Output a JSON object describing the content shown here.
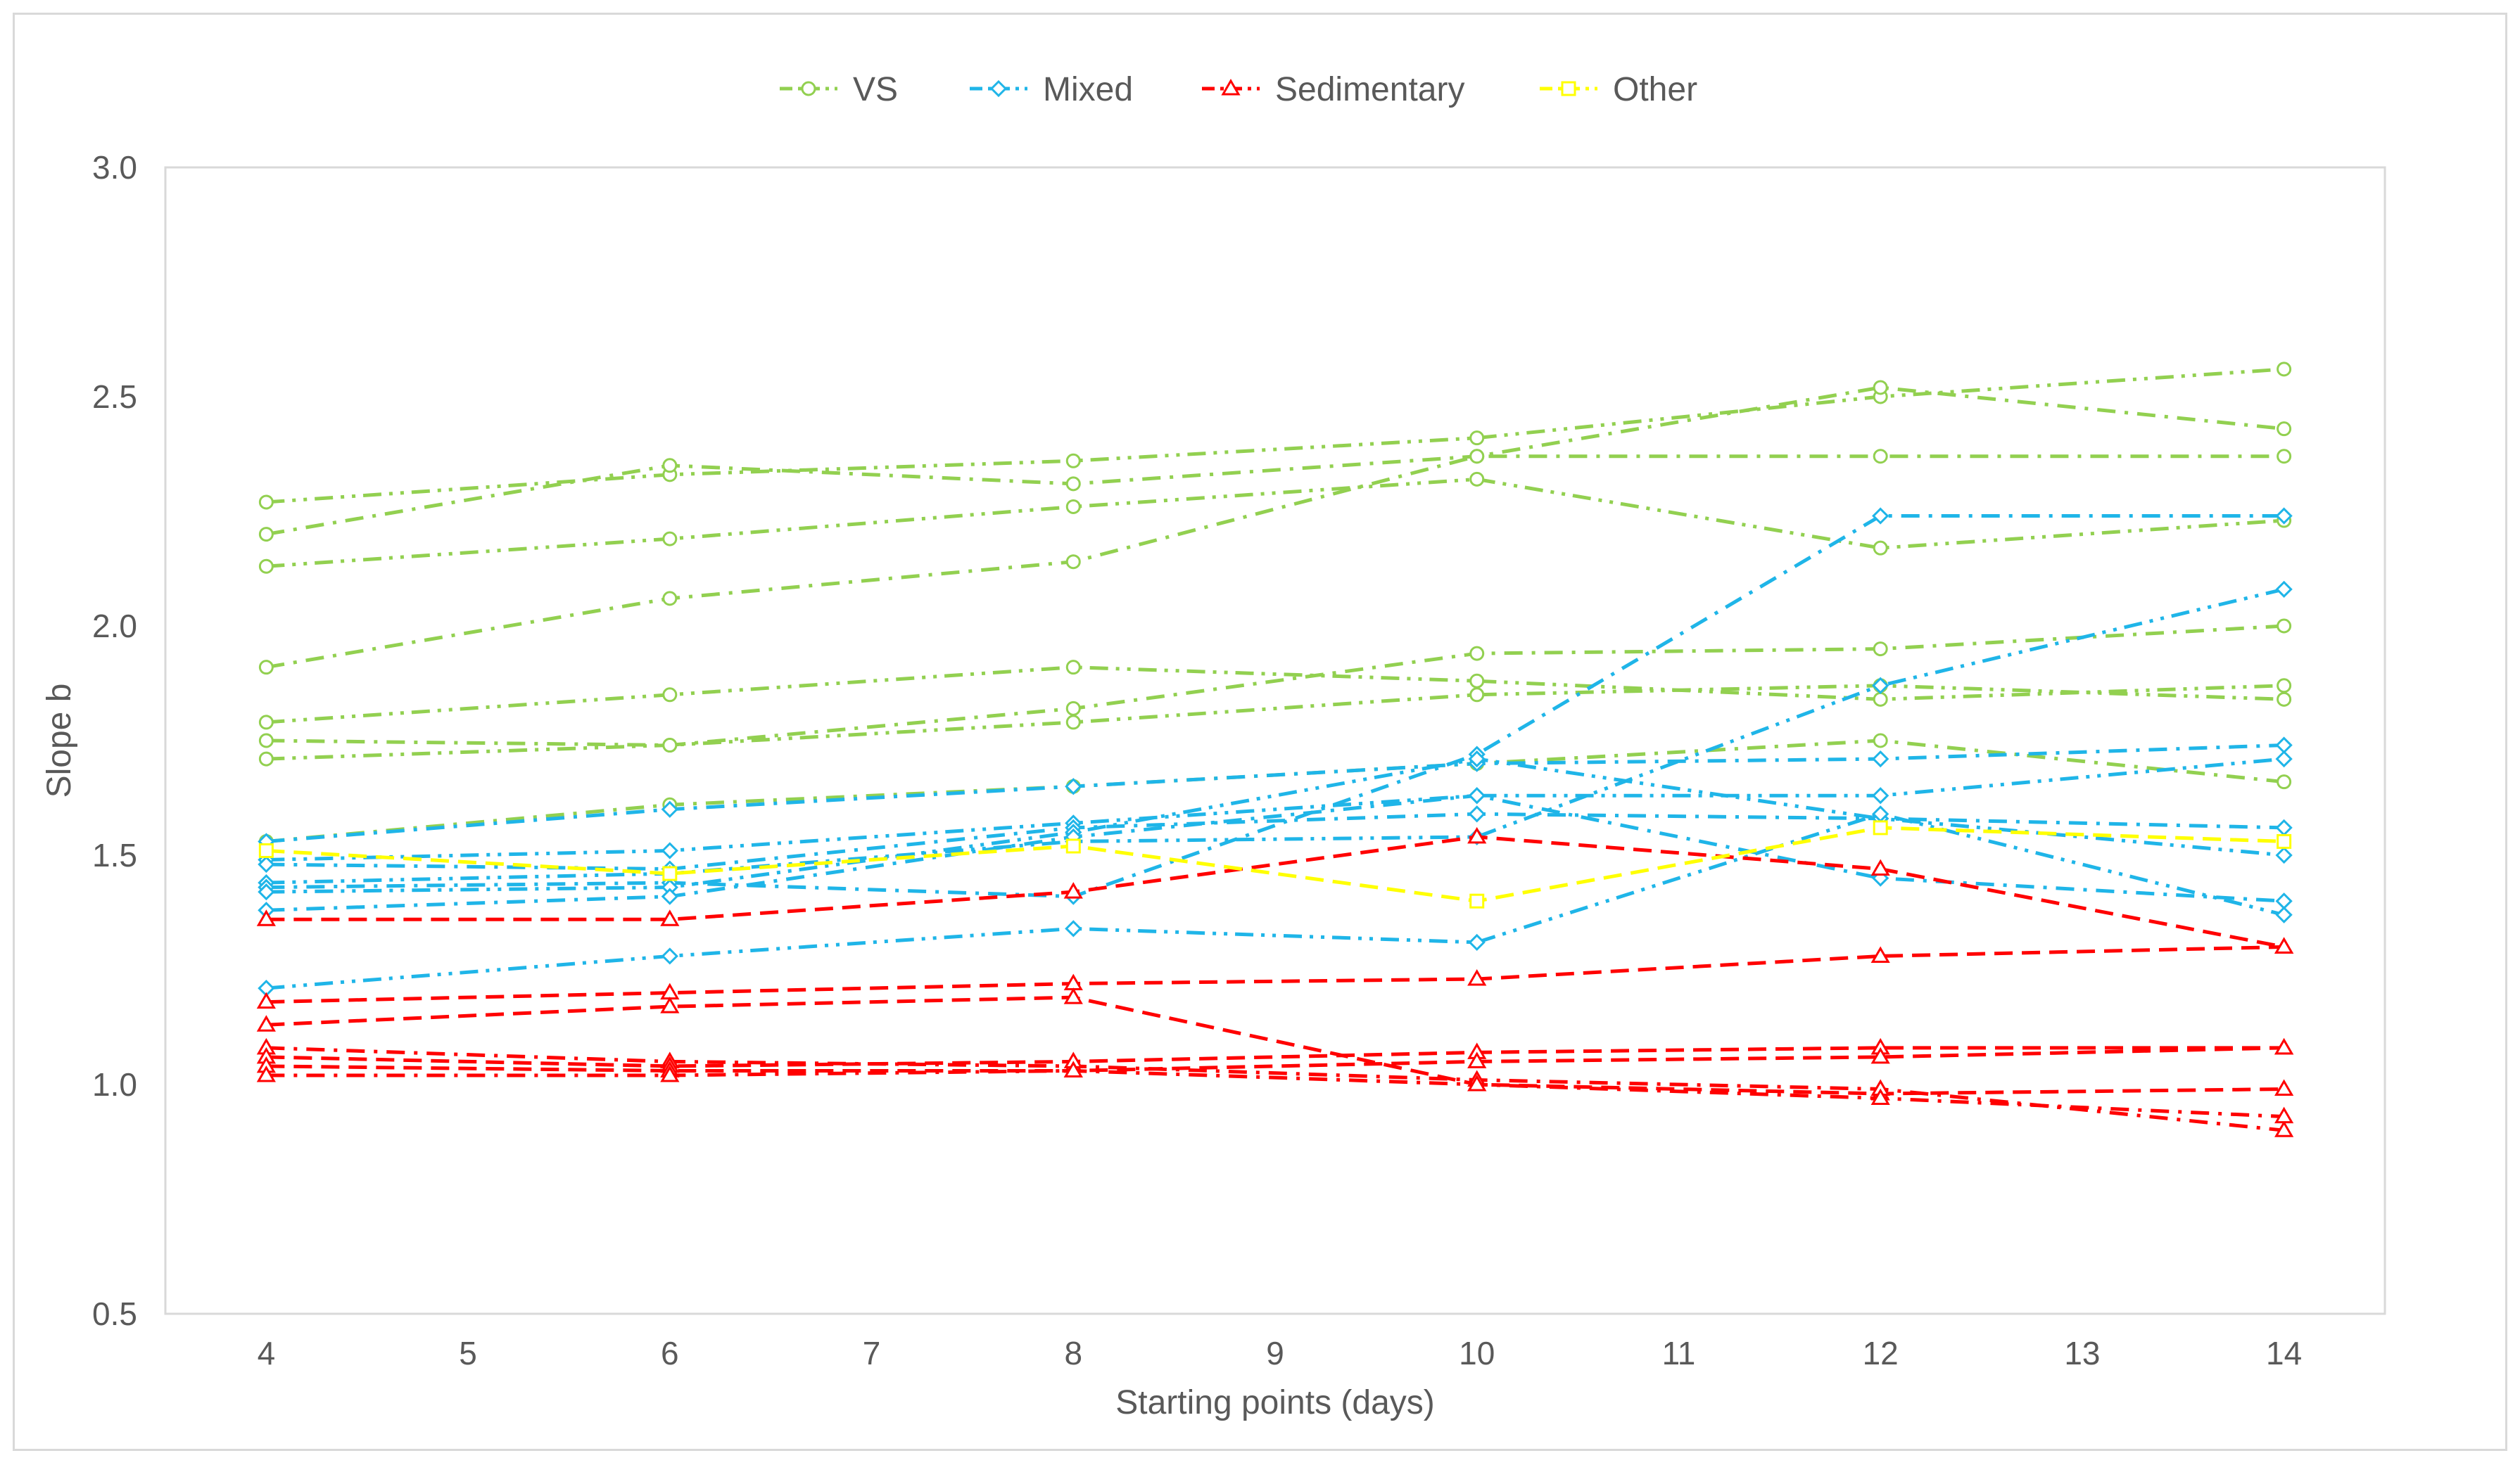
{
  "chart_data": {
    "type": "line",
    "title": "",
    "xlabel": "Starting points (days)",
    "ylabel": "Slope b",
    "xlim": [
      3.5,
      14.5
    ],
    "ylim": [
      0.5,
      3.0
    ],
    "x_ticks": [
      4,
      5,
      6,
      7,
      8,
      9,
      10,
      11,
      12,
      13,
      14
    ],
    "y_ticks": [
      0.5,
      1.0,
      1.5,
      2.0,
      2.5,
      3.0
    ],
    "y_tick_labels": [
      "0.5",
      "1.0",
      "1.5",
      "2.0",
      "2.5",
      "3.0"
    ],
    "x": [
      4,
      6,
      8,
      10,
      12,
      14
    ],
    "legend_position": "top-center",
    "groups": [
      {
        "name": "VS",
        "color": "#92d050",
        "marker": "circle"
      },
      {
        "name": "Mixed",
        "color": "#1fb5e8",
        "marker": "diamond"
      },
      {
        "name": "Sedimentary",
        "color": "#ff0000",
        "marker": "triangle"
      },
      {
        "name": "Other",
        "color": "#ffff00",
        "marker": "square"
      }
    ],
    "series": [
      {
        "group": "VS",
        "dash": "dashdotdot",
        "values": [
          2.27,
          2.33,
          2.36,
          2.41,
          2.5,
          2.56
        ]
      },
      {
        "group": "VS",
        "dash": "dashdot",
        "values": [
          2.2,
          2.35,
          2.31,
          2.37,
          2.52,
          2.43
        ]
      },
      {
        "group": "VS",
        "dash": "dashdotdot",
        "values": [
          2.13,
          2.19,
          2.26,
          2.32,
          2.17,
          2.23
        ]
      },
      {
        "group": "VS",
        "dash": "dashdot",
        "values": [
          1.91,
          2.06,
          2.14,
          2.37,
          2.37,
          2.37
        ]
      },
      {
        "group": "VS",
        "dash": "dashdotdot",
        "values": [
          1.79,
          1.85,
          1.91,
          1.88,
          1.84,
          1.87
        ]
      },
      {
        "group": "VS",
        "dash": "dashdot",
        "values": [
          1.75,
          1.74,
          1.82,
          1.94,
          1.95,
          2.0
        ]
      },
      {
        "group": "VS",
        "dash": "dashdotdot",
        "values": [
          1.71,
          1.74,
          1.79,
          1.85,
          1.87,
          1.84
        ]
      },
      {
        "group": "VS",
        "dash": "dashdot",
        "values": [
          1.53,
          1.61,
          1.65,
          1.7,
          1.75,
          1.66
        ]
      },
      {
        "group": "Mixed",
        "dash": "dashdot",
        "values": [
          1.53,
          1.6,
          1.65,
          1.7,
          1.71,
          1.74
        ]
      },
      {
        "group": "Mixed",
        "dash": "dashdotdot",
        "values": [
          1.49,
          1.51,
          1.57,
          1.63,
          1.63,
          1.71
        ]
      },
      {
        "group": "Mixed",
        "dash": "dashdot",
        "values": [
          1.48,
          1.47,
          1.56,
          1.59,
          1.58,
          1.56
        ]
      },
      {
        "group": "Mixed",
        "dash": "dashdotdot",
        "values": [
          1.44,
          1.46,
          1.53,
          1.54,
          1.87,
          2.08
        ]
      },
      {
        "group": "Mixed",
        "dash": "dashdot",
        "values": [
          1.43,
          1.44,
          1.41,
          1.72,
          2.24,
          2.24
        ]
      },
      {
        "group": "Mixed",
        "dash": "dashdotdot",
        "values": [
          1.42,
          1.43,
          1.55,
          1.71,
          1.58,
          1.5
        ]
      },
      {
        "group": "Mixed",
        "dash": "dashdot",
        "values": [
          1.38,
          1.41,
          1.54,
          1.63,
          1.45,
          1.4
        ]
      },
      {
        "group": "Mixed",
        "dash": "dashdotdot",
        "values": [
          1.21,
          1.28,
          1.34,
          1.31,
          1.59,
          1.37
        ]
      },
      {
        "group": "Sedimentary",
        "dash": "dash",
        "values": [
          1.36,
          1.36,
          1.42,
          1.54,
          1.47,
          1.3
        ]
      },
      {
        "group": "Sedimentary",
        "dash": "dash",
        "values": [
          1.18,
          1.2,
          1.22,
          1.23,
          1.28,
          1.3
        ]
      },
      {
        "group": "Sedimentary",
        "dash": "dash",
        "values": [
          1.13,
          1.17,
          1.19,
          1.0,
          0.98,
          0.99
        ]
      },
      {
        "group": "Sedimentary",
        "dash": "dashdot",
        "values": [
          1.08,
          1.05,
          1.04,
          1.01,
          0.99,
          0.9
        ]
      },
      {
        "group": "Sedimentary",
        "dash": "dash",
        "values": [
          1.06,
          1.04,
          1.05,
          1.07,
          1.08,
          1.08
        ]
      },
      {
        "group": "Sedimentary",
        "dash": "dash",
        "values": [
          1.04,
          1.03,
          1.03,
          1.05,
          1.06,
          1.08
        ]
      },
      {
        "group": "Sedimentary",
        "dash": "dashdot",
        "values": [
          1.02,
          1.02,
          1.03,
          1.0,
          0.97,
          0.93
        ]
      },
      {
        "group": "Other",
        "dash": "dash",
        "values": [
          1.51,
          1.46,
          1.52,
          1.4,
          1.56,
          1.53
        ]
      }
    ]
  }
}
